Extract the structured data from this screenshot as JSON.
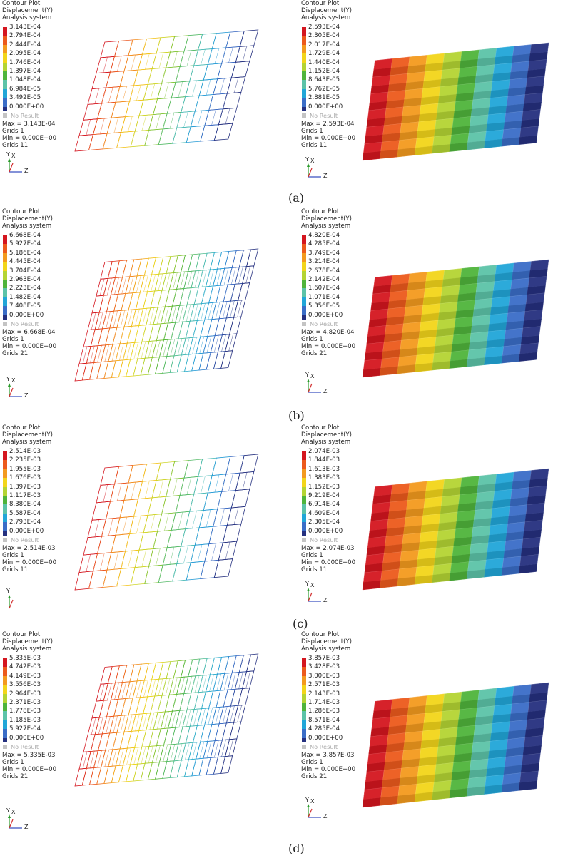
{
  "rows": [
    {
      "caption": "(a)",
      "panels": [
        {
          "header": [
            "Contour Plot",
            "Displacement(Y)",
            "Analysis system"
          ],
          "ticks": [
            "3.143E-04",
            "2.794E-04",
            "2.444E-04",
            "2.095E-04",
            "1.746E-04",
            "1.397E-04",
            "1.048E-04",
            "6.984E-05",
            "3.492E-05",
            "0.000E+00"
          ],
          "no_result": "No Result",
          "stats": [
            "Max = 3.143E-04",
            "Grids 1",
            "Min = 0.000E+00",
            "Grids 11"
          ],
          "axes": {
            "up": "Y",
            "side": "X",
            "right": "Z"
          }
        },
        {
          "header": [
            "Contour Plot",
            "Displacement(Y)",
            "Analysis system"
          ],
          "ticks": [
            "2.593E-04",
            "2.305E-04",
            "2.017E-04",
            "1.729E-04",
            "1.440E-04",
            "1.152E-04",
            "8.643E-05",
            "5.762E-05",
            "2.881E-05",
            "0.000E+00"
          ],
          "no_result": "No Result",
          "stats": [
            "Max = 2.593E-04",
            "Grids 1",
            "Min = 0.000E+00",
            "Grids 11"
          ],
          "axes": {
            "up": "Y",
            "side": "X",
            "right": "Z"
          }
        }
      ]
    },
    {
      "caption": "(b)",
      "panels": [
        {
          "header": [
            "Contour Plot",
            "Displacement(Y)",
            "Analysis system"
          ],
          "ticks": [
            "6.668E-04",
            "5.927E-04",
            "5.186E-04",
            "4.445E-04",
            "3.704E-04",
            "2.963E-04",
            "2.223E-04",
            "1.482E-04",
            "7.408E-05",
            "0.000E+00"
          ],
          "no_result": "No Result",
          "stats": [
            "Max = 6.668E-04",
            "Grids 1",
            "Min = 0.000E+00",
            "Grids 21"
          ],
          "axes": {
            "up": "Y",
            "side": "X",
            "right": "Z"
          }
        },
        {
          "header": [
            "Contour Plot",
            "Displacement(Y)",
            "Analysis system"
          ],
          "ticks": [
            "4.820E-04",
            "4.285E-04",
            "3.749E-04",
            "3.214E-04",
            "2.678E-04",
            "2.142E-04",
            "1.607E-04",
            "1.071E-04",
            "5.356E-05",
            "0.000E+00"
          ],
          "no_result": "No Result",
          "stats": [
            "Max = 4.820E-04",
            "Grids 1",
            "Min = 0.000E+00",
            "Grids 21"
          ],
          "axes": {
            "up": "Y",
            "side": "X",
            "right": "Z"
          }
        }
      ]
    },
    {
      "caption": "(c)",
      "panels": [
        {
          "header": [
            "Contour Plot",
            "Displacement(Y)",
            "Analysis system"
          ],
          "ticks": [
            "2.514E-03",
            "2.235E-03",
            "1.955E-03",
            "1.676E-03",
            "1.397E-03",
            "1.117E-03",
            "8.380E-04",
            "5.587E-04",
            "2.793E-04",
            "0.000E+00"
          ],
          "no_result": "No Result",
          "stats": [
            "Max = 2.514E-03",
            "Grids 1",
            "Min = 0.000E+00",
            "Grids 11"
          ],
          "axes": {
            "up": "Y",
            "side": "",
            "right": ""
          }
        },
        {
          "header": [
            "Contour Plot",
            "Displacement(Y)",
            "Analysis system"
          ],
          "ticks": [
            "2.074E-03",
            "1.844E-03",
            "1.613E-03",
            "1.383E-03",
            "1.152E-03",
            "9.219E-04",
            "6.914E-04",
            "4.609E-04",
            "2.305E-04",
            "0.000E+00"
          ],
          "no_result": "No Result",
          "stats": [
            "Max = 2.074E-03",
            "Grids 1",
            "Min = 0.000E+00",
            "Grids 11"
          ],
          "axes": {
            "up": "Y",
            "side": "X",
            "right": "Z"
          }
        }
      ]
    },
    {
      "caption": "(d)",
      "panels": [
        {
          "header": [
            "Contour Plot",
            "Displacement(Y)",
            "Analysis system"
          ],
          "ticks": [
            "5.335E-03",
            "4.742E-03",
            "4.149E-03",
            "3.556E-03",
            "2.964E-03",
            "2.371E-03",
            "1.778E-03",
            "1.185E-03",
            "5.927E-04",
            "0.000E+00"
          ],
          "no_result": "No Result",
          "stats": [
            "Max = 5.335E-03",
            "Grids 1",
            "Min = 0.000E+00",
            "Grids 21"
          ],
          "axes": {
            "up": "Y",
            "side": "X",
            "right": "Z"
          }
        },
        {
          "header": [
            "Contour Plot",
            "Displacement(Y)",
            "Analysis system"
          ],
          "ticks": [
            "3.857E-03",
            "3.428E-03",
            "3.000E-03",
            "2.571E-03",
            "2.143E-03",
            "1.714E-03",
            "1.286E-03",
            "8.571E-04",
            "4.285E-04",
            "0.000E+00"
          ],
          "no_result": "No Result",
          "stats": [
            "Max = 3.857E-03",
            "Grids 1",
            "Min = 0.000E+00",
            "Grids 21"
          ],
          "axes": {
            "up": "Y",
            "side": "X",
            "right": "Z"
          }
        }
      ]
    }
  ],
  "colormap": [
    "#d4161f",
    "#ec5a1c",
    "#f39a1e",
    "#f2d51a",
    "#b4d433",
    "#4fb43b",
    "#5cc3a8",
    "#21a6d8",
    "#3a6dc7",
    "#25307f"
  ],
  "mesh_styles": {
    "left": "wireframe",
    "right": "filled"
  }
}
